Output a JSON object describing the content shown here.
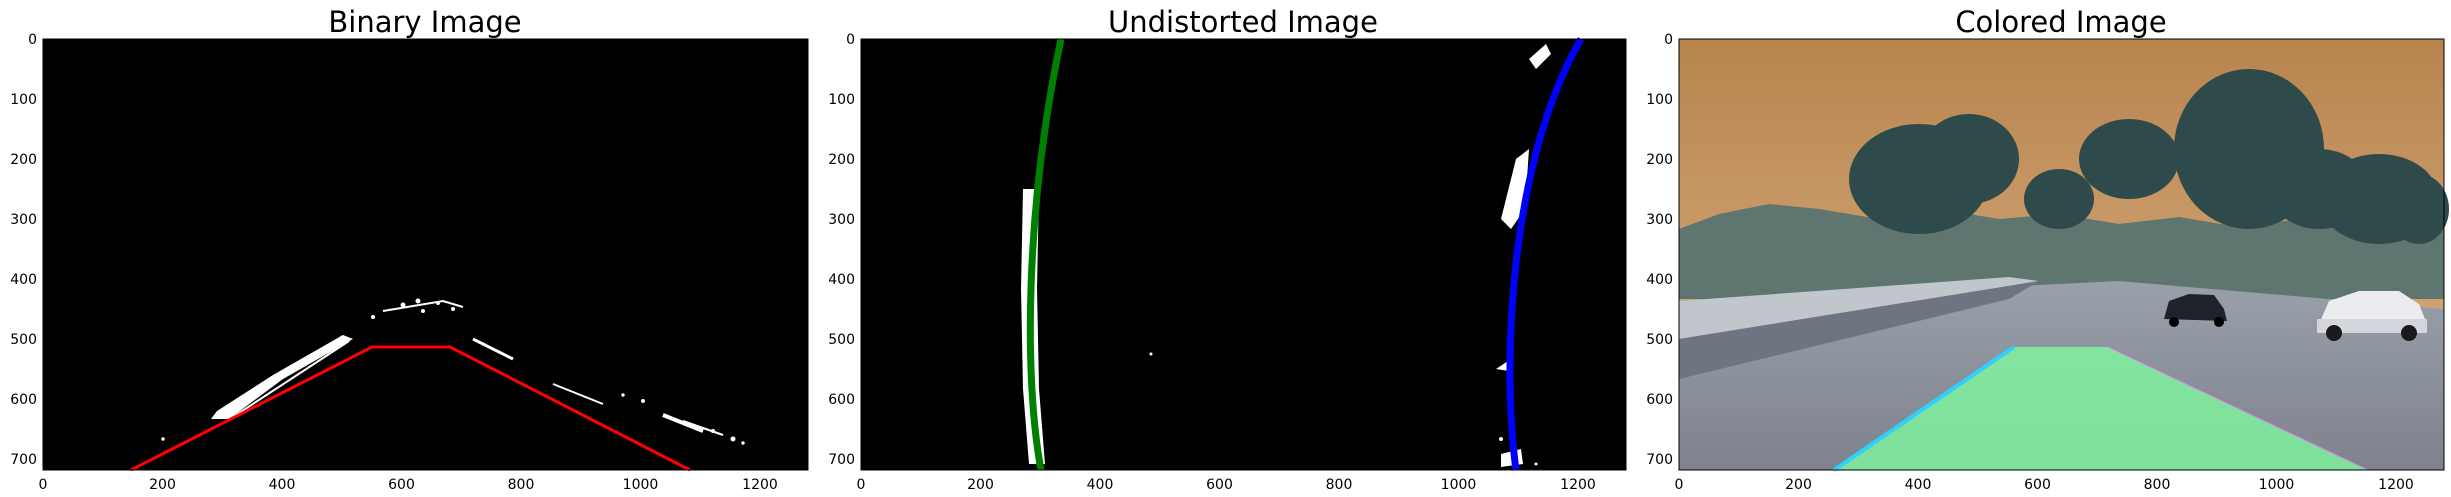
{
  "panels": [
    {
      "title": "Binary Image",
      "x_ticks": [
        "0",
        "200",
        "400",
        "600",
        "800",
        "1000",
        "1200"
      ],
      "y_ticks": [
        "0",
        "100",
        "200",
        "300",
        "400",
        "500",
        "600",
        "700"
      ],
      "content": "binary",
      "trapezoid_color": "#ff0000"
    },
    {
      "title": "Undistorted Image",
      "x_ticks": [
        "0",
        "200",
        "400",
        "600",
        "800",
        "1000",
        "1200"
      ],
      "y_ticks": [
        "0",
        "100",
        "200",
        "300",
        "400",
        "500",
        "600",
        "700"
      ],
      "content": "warped",
      "left_fit_color": "#008000",
      "right_fit_color": "#0000ff"
    },
    {
      "title": "Colored Image",
      "x_ticks": [
        "0",
        "200",
        "400",
        "600",
        "800",
        "1000",
        "1200"
      ],
      "y_ticks": [
        "0",
        "100",
        "200",
        "300",
        "400",
        "500",
        "600",
        "700"
      ],
      "content": "photo",
      "lane_fill_color": "#7fff9f",
      "sky_color": "#c89a66",
      "road_color": "#8a8f9a"
    }
  ]
}
